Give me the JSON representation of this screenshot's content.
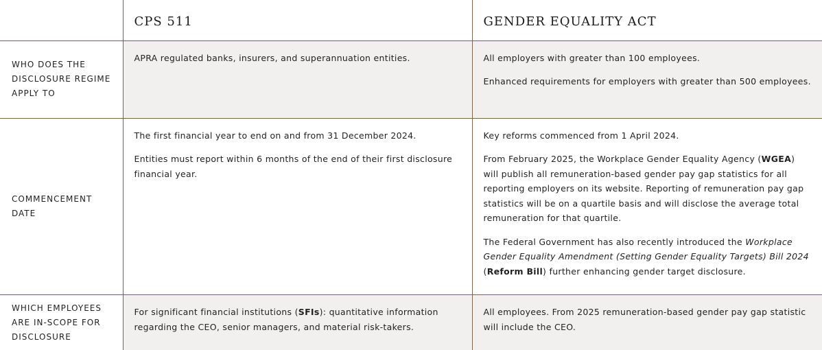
{
  "header": {
    "col1": "CPS 511",
    "col2": "GENDER EQUALITY ACT"
  },
  "rows": [
    {
      "label": "WHO DOES THE DISCLOSURE REGIME APPLY TO",
      "cps": [
        [
          {
            "t": "APRA regulated banks, insurers, and superannuation entities."
          }
        ]
      ],
      "gea": [
        [
          {
            "t": "All employers with greater than 100 employees."
          }
        ],
        [
          {
            "t": "Enhanced requirements for employers with greater than 500 employees."
          }
        ]
      ]
    },
    {
      "label": "COMMENCEMENT DATE",
      "cps": [
        [
          {
            "t": "The first financial year to end on and from 31 December 2024."
          }
        ],
        [
          {
            "t": "Entities must report within 6 months of the end of their first disclosure financial year."
          }
        ]
      ],
      "gea": [
        [
          {
            "t": "Key reforms commenced from 1 April 2024."
          }
        ],
        [
          {
            "t": "From February 2025, the Workplace Gender Equality Agency ("
          },
          {
            "t": "WGEA",
            "s": "b"
          },
          {
            "t": ") will publish all remuneration-based gender pay gap statistics for all reporting employers on its website.  Reporting of remuneration pay gap statistics will be on a quartile basis and will disclose the average total remuneration for that quartile."
          }
        ],
        [
          {
            "t": "The Federal Government has also recently introduced the "
          },
          {
            "t": "Workplace Gender Equality Amendment (Setting Gender Equality Targets) Bill 2024",
            "s": "i"
          },
          {
            "t": " ("
          },
          {
            "t": "Reform Bill",
            "s": "b"
          },
          {
            "t": ") further enhancing gender target disclosure."
          }
        ]
      ]
    },
    {
      "label": "WHICH EMPLOYEES ARE IN-SCOPE FOR DISCLOSURE",
      "cps": [
        [
          {
            "t": "For significant financial institutions ("
          },
          {
            "t": "SFIs",
            "s": "b"
          },
          {
            "t": "): quantitative information regarding the CEO, senior managers, and material risk-takers."
          }
        ]
      ],
      "gea": [
        [
          {
            "t": "All employees.  From 2025 remuneration-based gender pay gap statistic will include the CEO."
          }
        ]
      ]
    }
  ]
}
